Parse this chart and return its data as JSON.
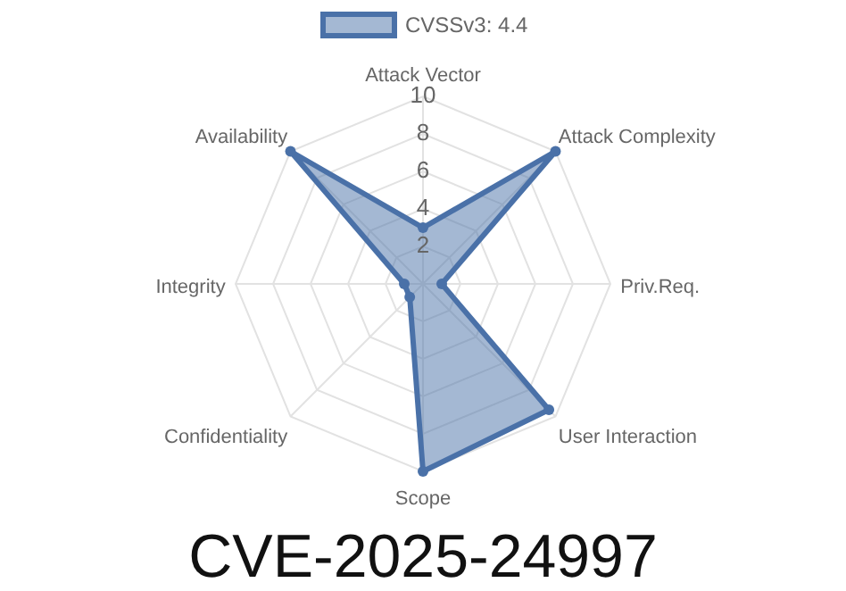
{
  "chart_data": {
    "type": "radar",
    "title": "CVE-2025-24997",
    "categories": [
      "Attack Vector",
      "Attack Complexity",
      "Priv.Req.",
      "User Interaction",
      "Scope",
      "Confidentiality",
      "Integrity",
      "Availability"
    ],
    "series": [
      {
        "name": "CVSSv3: 4.4",
        "color": "#4a71a8",
        "values": [
          3,
          10,
          1,
          9.5,
          10,
          1,
          1,
          10
        ]
      }
    ],
    "ylim": [
      0,
      10
    ],
    "yticks": [
      2,
      4,
      6,
      8,
      10
    ],
    "grid": true,
    "legend": "top",
    "marker": "circle"
  }
}
